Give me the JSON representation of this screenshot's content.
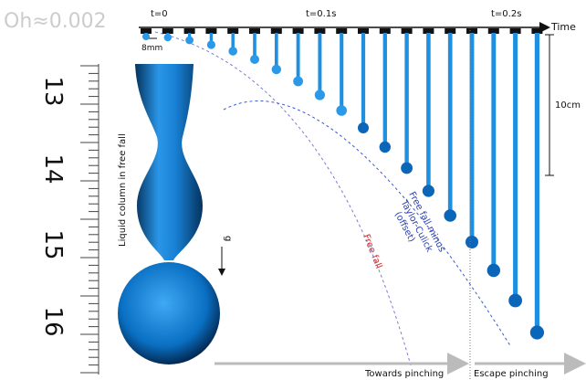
{
  "figure": {
    "oh_label": "Oh≈0.002",
    "time_axis": {
      "label": "Time",
      "ticks": [
        "t=0",
        "t=0.1s",
        "t=0.2s"
      ]
    },
    "scale_small": "8mm",
    "scale_large": "10cm",
    "ruler_labels": [
      "13",
      "14",
      "15",
      "16"
    ],
    "column_label": "Liquid column in free fall",
    "gravity_label": "g",
    "free_fall_label": "Free fall",
    "taylor_culick_label": [
      "Free fall minus",
      "Taylor-Culick",
      "(offset)"
    ],
    "towards_label": "Towards pinching",
    "escape_label": "Escape pinching"
  }
}
